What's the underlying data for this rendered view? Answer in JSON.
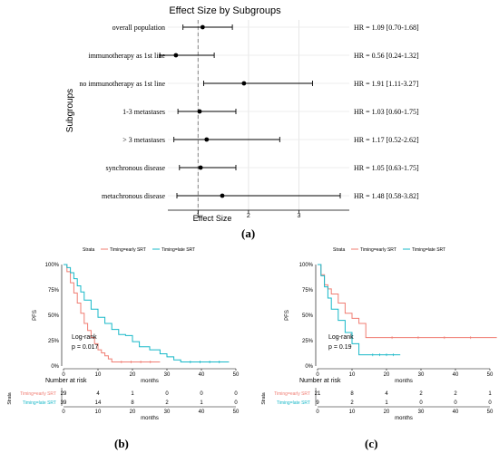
{
  "forest": {
    "title": "Effect Size by Subgroups",
    "xlabel": "Effect Size",
    "ylabel": "Subgroups",
    "xticks": [
      1,
      2,
      3
    ],
    "xlim": [
      0.4,
      4.0
    ],
    "reference_line": 1,
    "panel_label": "(a)"
  },
  "km_b": {
    "panel_label": "(b)",
    "legend_title": "Strata",
    "legend": [
      "Timing=early SRT",
      "Timing=late SRT"
    ],
    "ylabel": "PFS",
    "xlabel": "months",
    "yticks": [
      "0%",
      "25%",
      "50%",
      "75%",
      "100%"
    ],
    "xticks": [
      0,
      10,
      20,
      30,
      40,
      50
    ],
    "annot_line1": "Log-rank",
    "annot_line2": "p = 0.017",
    "risk_title": "Number at risk",
    "risk_strata_label": "Strata",
    "risk_rows": [
      {
        "label": "Timing=early SRT",
        "values": [
          "29",
          "4",
          "1",
          "0",
          "0",
          "0"
        ]
      },
      {
        "label": "Timing=late SRT",
        "values": [
          "39",
          "14",
          "8",
          "2",
          "1",
          "0"
        ]
      }
    ]
  },
  "km_c": {
    "panel_label": "(c)",
    "legend_title": "Strata",
    "legend": [
      "Timing=early SRT",
      "Timing=late SRT"
    ],
    "ylabel": "PFS",
    "xlabel": "months",
    "yticks": [
      "0%",
      "25%",
      "50%",
      "75%",
      "100%"
    ],
    "xticks": [
      0,
      10,
      20,
      30,
      40,
      50
    ],
    "annot_line1": "Log-rank",
    "annot_line2": "p = 0.19",
    "risk_title": "Number at risk",
    "risk_strata_label": "Strata",
    "risk_rows": [
      {
        "label": "Timing=early SRT",
        "values": [
          "21",
          "8",
          "4",
          "2",
          "2",
          "1"
        ]
      },
      {
        "label": "Timing=late SRT",
        "values": [
          "9",
          "2",
          "1",
          "0",
          "0",
          "0"
        ]
      }
    ]
  },
  "colors": {
    "early": "#f07c72",
    "late": "#17b8c8",
    "point": "#000000",
    "refline": "#888888"
  },
  "chart_data": [
    {
      "type": "scatter",
      "title": "Effect Size by Subgroups",
      "xlabel": "Effect Size",
      "ylabel": "Subgroups",
      "xlim": [
        0.4,
        4.0
      ],
      "grid": true,
      "rows": [
        {
          "label": "overall population",
          "hr": 1.09,
          "lo": 0.7,
          "hi": 1.68,
          "text": "HR = 1.09 [0.70-1.68]"
        },
        {
          "label": "immunotherapy as 1st line",
          "hr": 0.56,
          "lo": 0.24,
          "hi": 1.32,
          "text": "HR = 0.56 [0.24-1.32]"
        },
        {
          "label": "no immunotherapy as 1st line",
          "hr": 1.91,
          "lo": 1.11,
          "hi": 3.27,
          "text": "HR = 1.91 [1.11-3.27]"
        },
        {
          "label": "1-3 metastases",
          "hr": 1.03,
          "lo": 0.6,
          "hi": 1.75,
          "text": "HR = 1.03 [0.60-1.75]"
        },
        {
          "label": "> 3 metastases",
          "hr": 1.17,
          "lo": 0.52,
          "hi": 2.62,
          "text": "HR = 1.17 [0.52-2.62]"
        },
        {
          "label": "synchronous disease",
          "hr": 1.05,
          "lo": 0.63,
          "hi": 1.75,
          "text": "HR = 1.05 [0.63-1.75]"
        },
        {
          "label": "metachronous disease",
          "hr": 1.48,
          "lo": 0.58,
          "hi": 3.82,
          "text": "HR = 1.48 [0.58-3.82]"
        }
      ]
    },
    {
      "type": "line",
      "xlabel": "months",
      "ylabel": "PFS",
      "xlim": [
        0,
        50
      ],
      "ylim": [
        0,
        100
      ],
      "series": [
        {
          "name": "Timing=early SRT",
          "x": [
            0,
            1,
            2,
            3,
            4,
            5,
            6,
            7,
            8,
            9,
            10,
            11,
            12,
            13,
            14,
            28
          ],
          "y": [
            100,
            93,
            82,
            72,
            62,
            52,
            42,
            35,
            28,
            22,
            16,
            13,
            10,
            7,
            4,
            4
          ]
        },
        {
          "name": "Timing=late SRT",
          "x": [
            0,
            1,
            2,
            3,
            4,
            5,
            6,
            8,
            10,
            12,
            14,
            16,
            18,
            20,
            22,
            25,
            28,
            30,
            32,
            34,
            48
          ],
          "y": [
            100,
            97,
            92,
            86,
            79,
            73,
            65,
            56,
            48,
            42,
            36,
            31,
            30,
            24,
            19,
            16,
            12,
            9,
            6,
            4,
            4
          ]
        }
      ]
    },
    {
      "type": "line",
      "xlabel": "months",
      "ylabel": "PFS",
      "xlim": [
        0,
        50
      ],
      "ylim": [
        0,
        100
      ],
      "series": [
        {
          "name": "Timing=early SRT",
          "x": [
            0,
            1,
            2,
            3,
            4,
            6,
            8,
            10,
            12,
            14,
            52
          ],
          "y": [
            100,
            90,
            80,
            76,
            71,
            62,
            52,
            47,
            42,
            28,
            28
          ]
        },
        {
          "name": "Timing=late SRT",
          "x": [
            0,
            1,
            2,
            3,
            4,
            6,
            8,
            10,
            12,
            14,
            24
          ],
          "y": [
            100,
            89,
            78,
            67,
            56,
            45,
            33,
            22,
            11,
            11,
            11
          ]
        }
      ]
    }
  ]
}
